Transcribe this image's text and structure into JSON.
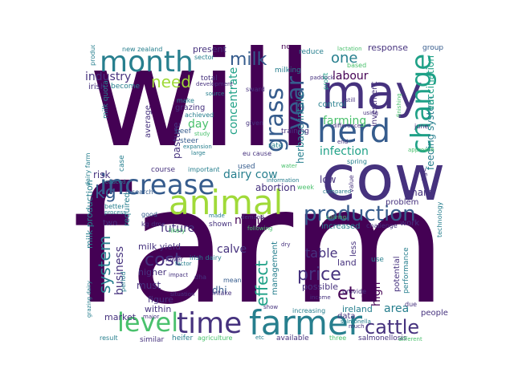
{
  "palette": {
    "background": "#ffffff",
    "dark_purple": "#440154",
    "indigo": "#46327e",
    "blue": "#365c8d",
    "teal_blue": "#277f8e",
    "teal": "#1fa187",
    "green": "#4ac16d",
    "lime": "#a0da39",
    "yellow": "#fde725"
  },
  "words": [
    "will",
    "farm",
    "cow",
    "may",
    "animal",
    "farmer",
    "herd",
    "month",
    "change",
    "increase",
    "time",
    "level",
    "production",
    "grass",
    "year",
    "milk",
    "cattle",
    "need",
    "kg",
    "et al",
    "price",
    "cost",
    "system",
    "effect",
    "dairy cow",
    "one",
    "industry",
    "labour",
    "calve",
    "concentrate",
    "farming",
    "infection",
    "area",
    "high",
    "future",
    "number",
    "pasture",
    "table",
    "business",
    "feeding system",
    "vaccination",
    "herbage intake",
    "new zealand",
    "product",
    "irish",
    "become",
    "milk quota",
    "sector",
    "present",
    "now",
    "reduce",
    "response",
    "group",
    "lactation",
    "paddock",
    "milking",
    "profit",
    "investment",
    "control",
    "training",
    "total",
    "source",
    "make",
    "achieved",
    "grazing",
    "steer",
    "beef",
    "study",
    "expansion",
    "large",
    "day",
    "average",
    "risk",
    "case",
    "reduced",
    "research",
    "course",
    "important",
    "abortion",
    "low",
    "many",
    "age",
    "information",
    "used",
    "eu cause",
    "rate",
    "spring",
    "compared",
    "value",
    "week",
    "problem",
    "two",
    "required",
    "milk yield",
    "milk production",
    "good",
    "kg dm",
    "shown",
    "increased",
    "work",
    "technology",
    "challenge",
    "calving",
    "following",
    "better",
    "process",
    "likely",
    "land",
    "use",
    "potential",
    "performance",
    "factor",
    "irish dairy",
    "higher",
    "management",
    "possible",
    "must",
    "figure",
    "dhi",
    "within",
    "dha",
    "impact",
    "situation",
    "mean",
    "market",
    "major",
    "data",
    "ireland",
    "heifer",
    "intake",
    "agriculture",
    "available",
    "three",
    "salmonellosis",
    "different",
    "similar",
    "result",
    "increasing",
    "salmonella",
    "due",
    "people",
    "show",
    "much",
    "income",
    "provide",
    "lower",
    "dairy farm",
    "period",
    "grazing dairy",
    "less",
    "june",
    "end",
    "difference",
    "still",
    "using",
    "based",
    "development",
    "given",
    "water",
    "approach",
    "finishing",
    "dry",
    "sward",
    "made",
    "demand",
    "etc"
  ]
}
